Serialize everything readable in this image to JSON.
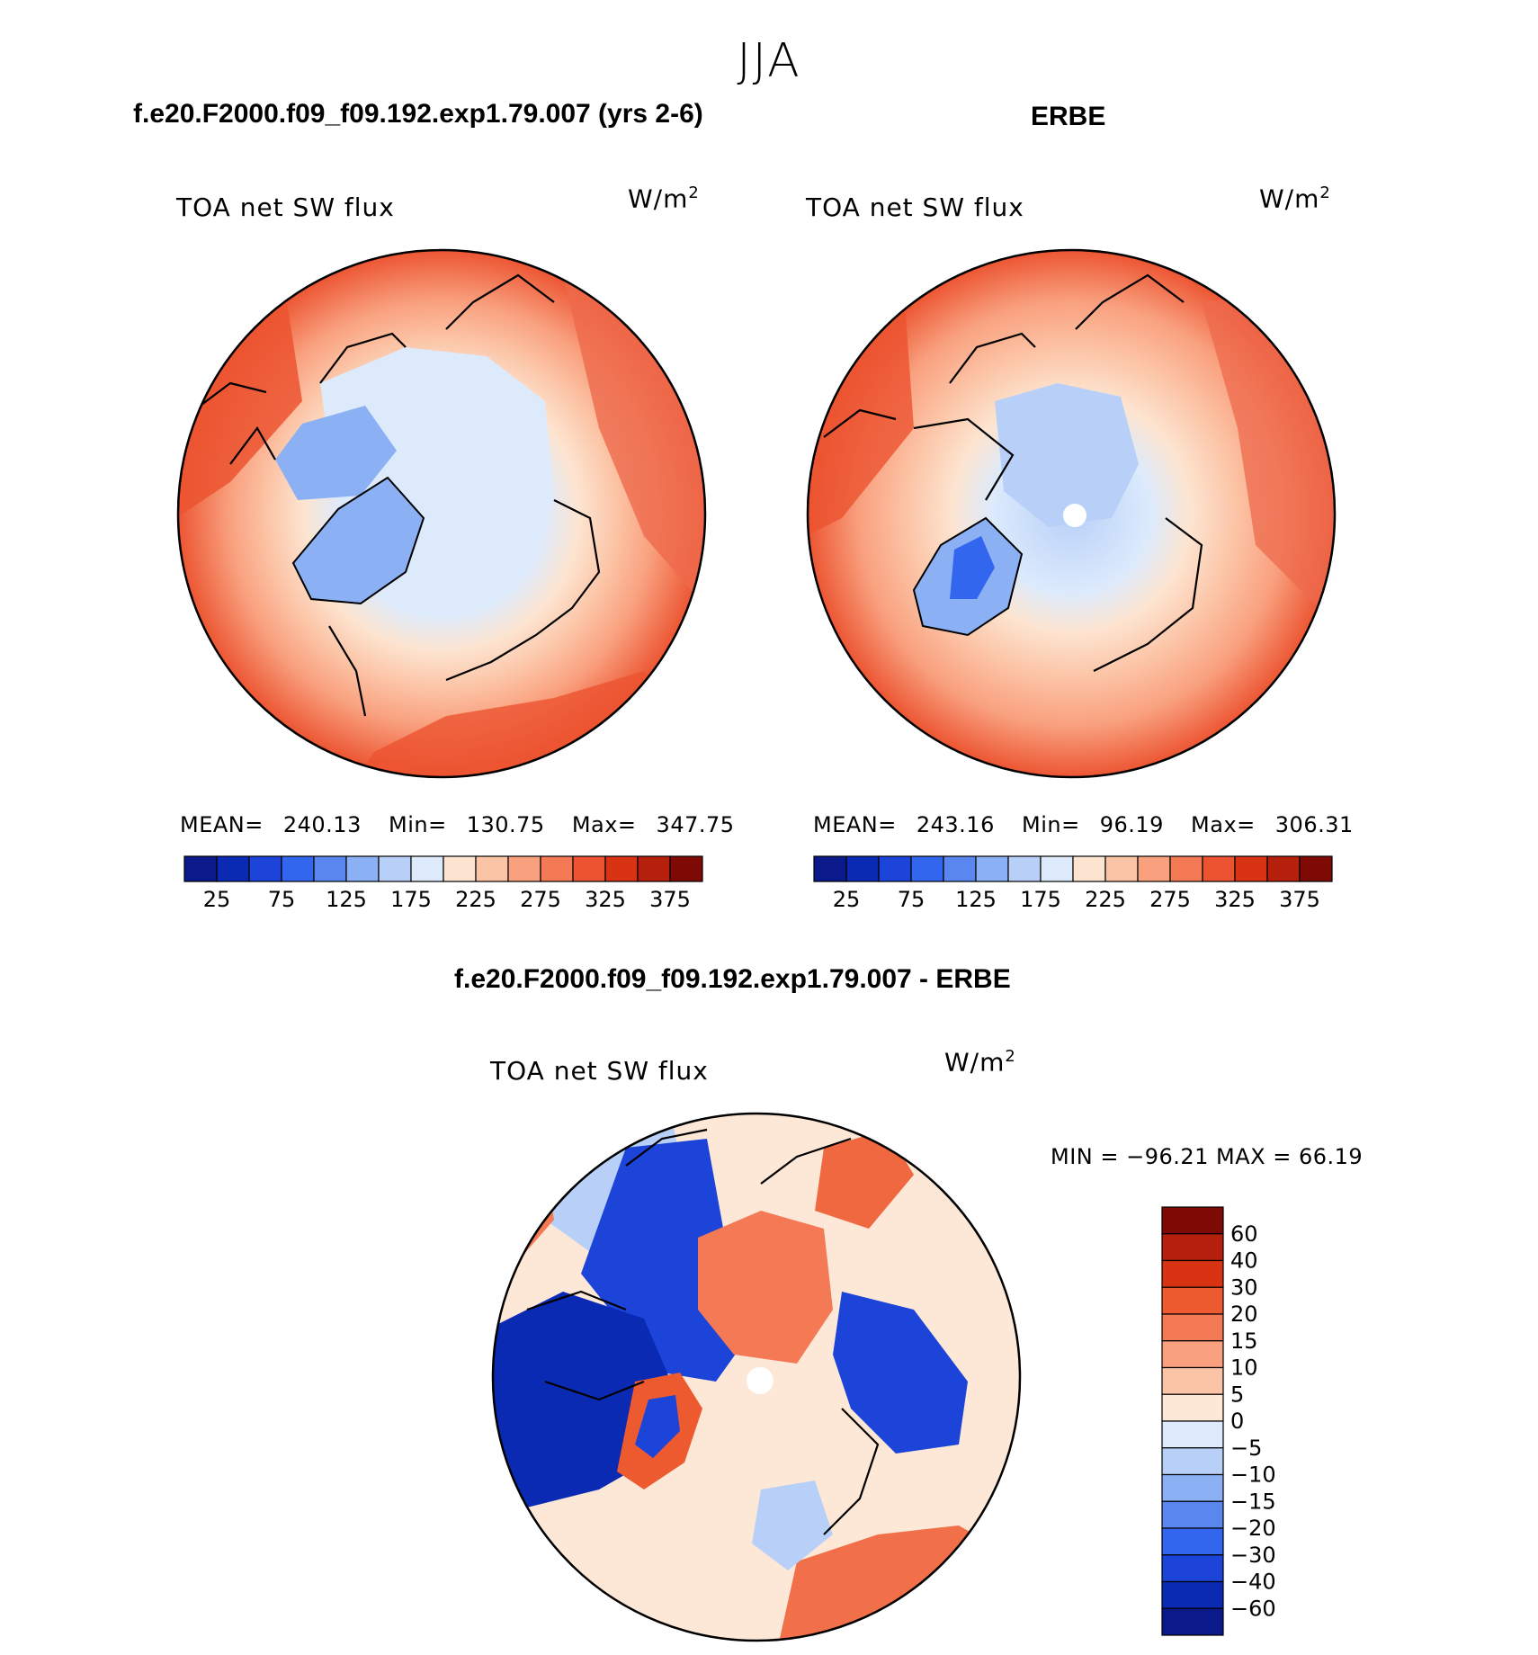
{
  "figure": {
    "season": "JJA",
    "colors": {
      "ocean_warm": "#ee6a4c",
      "land_cold": "#8bb2f4",
      "coast": "#000000",
      "pole_mask": "#ffffff"
    }
  },
  "panels": [
    {
      "title": "f.e20.F2000.f09_f09.192.exp1.79.007 (yrs 2-6)",
      "variable": "TOA net SW flux",
      "units": "W/m",
      "units_sup": "2",
      "mean_label": "MEAN=",
      "mean": "240.13",
      "min_label": "Min=",
      "min": "130.75",
      "max_label": "Max=",
      "max": "347.75"
    },
    {
      "title": "ERBE",
      "variable": "TOA net SW flux",
      "units": "W/m",
      "units_sup": "2",
      "mean_label": "MEAN=",
      "mean": "243.16",
      "min_label": "Min=",
      "min": "96.19",
      "max_label": "Max=",
      "max": "306.31"
    },
    {
      "title": "f.e20.F2000.f09_f09.192.exp1.79.007 - ERBE",
      "variable": "TOA net SW flux",
      "units": "W/m",
      "units_sup": "2",
      "minmax_text": "MIN = −96.21 MAX =   66.19"
    }
  ],
  "chart_data": [
    {
      "type": "heatmap",
      "projection": "north-polar-stereographic",
      "title": "f.e20.F2000.f09_f09.192.exp1.79.007 (yrs 2-6)",
      "subtitle": "TOA net SW flux",
      "units": "W/m2",
      "stats": {
        "mean": 240.13,
        "min": 130.75,
        "max": 347.75
      },
      "colorbar": {
        "orientation": "horizontal",
        "tick_labels": [
          "25",
          "75",
          "125",
          "175",
          "225",
          "275",
          "325",
          "375"
        ],
        "colors": [
          "#0a1a8a",
          "#0a2ab4",
          "#1c44d8",
          "#3366ee",
          "#5a86f0",
          "#8cb0f4",
          "#b8d0f8",
          "#dceafc",
          "#fde4d0",
          "#fcc4a6",
          "#f9a07e",
          "#f47a56",
          "#ec5330",
          "#d83414",
          "#b4200c",
          "#7e0a06"
        ]
      }
    },
    {
      "type": "heatmap",
      "projection": "north-polar-stereographic",
      "title": "ERBE",
      "subtitle": "TOA net SW flux",
      "units": "W/m2",
      "stats": {
        "mean": 243.16,
        "min": 96.19,
        "max": 306.31
      },
      "colorbar": {
        "orientation": "horizontal",
        "tick_labels": [
          "25",
          "75",
          "125",
          "175",
          "225",
          "275",
          "325",
          "375"
        ],
        "colors": [
          "#0a1a8a",
          "#0a2ab4",
          "#1c44d8",
          "#3366ee",
          "#5a86f0",
          "#8cb0f4",
          "#b8d0f8",
          "#dceafc",
          "#fde4d0",
          "#fcc4a6",
          "#f9a07e",
          "#f47a56",
          "#ec5330",
          "#d83414",
          "#b4200c",
          "#7e0a06"
        ]
      }
    },
    {
      "type": "heatmap",
      "projection": "north-polar-stereographic",
      "title": "f.e20.F2000.f09_f09.192.exp1.79.007 - ERBE",
      "subtitle": "TOA net SW flux",
      "units": "W/m2",
      "stats": {
        "min": -96.21,
        "max": 66.19
      },
      "colorbar": {
        "orientation": "vertical",
        "tick_labels": [
          "60",
          "40",
          "30",
          "20",
          "15",
          "10",
          "5",
          "0",
          "−5",
          "−10",
          "−15",
          "−20",
          "−30",
          "−40",
          "−60"
        ],
        "colors": [
          "#7e0a06",
          "#b4200c",
          "#d83414",
          "#ee5a30",
          "#f47a56",
          "#f9a07e",
          "#fcc4a6",
          "#fde8d8",
          "#dceafc",
          "#b8d0f8",
          "#8cb0f4",
          "#5a86f0",
          "#3366ee",
          "#1c44d8",
          "#0a2ab4",
          "#0a1a8a"
        ]
      }
    }
  ]
}
